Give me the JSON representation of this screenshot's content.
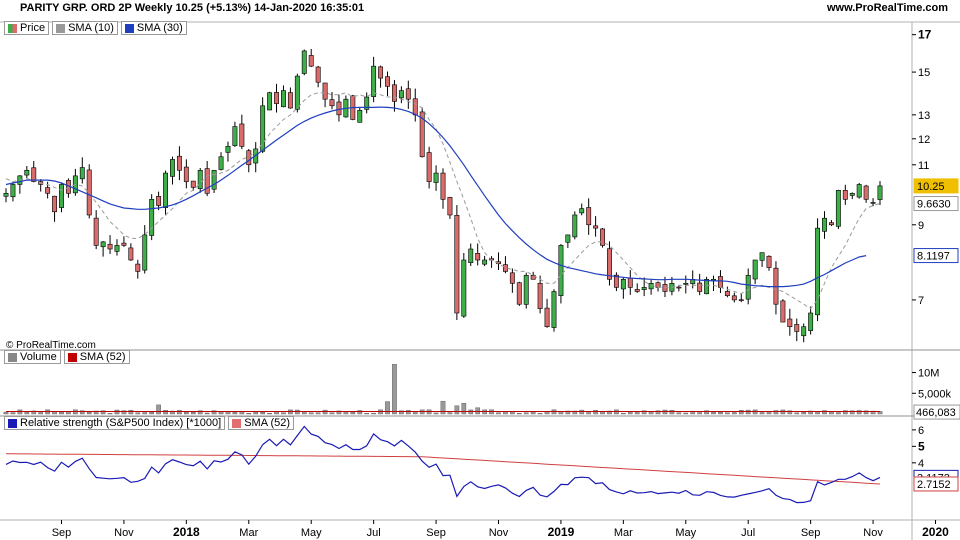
{
  "header": {
    "title": "PARITY GRP. ORD 2P Weekly 10.25 (+5.13%) 14-Jan-2020 16:35:01",
    "site": "www.ProRealTime.com",
    "copyright": "© ProRealTime.com"
  },
  "legend_price": [
    {
      "label": "Price",
      "color": "#3fae49"
    },
    {
      "label": "SMA (10)",
      "color": "#999999"
    },
    {
      "label": "SMA (30)",
      "color": "#1f3fbf"
    }
  ],
  "legend_volume": [
    {
      "label": "Volume",
      "color": "#888888"
    },
    {
      "label": "SMA (52)",
      "color": "#c00000"
    }
  ],
  "legend_rs": [
    {
      "label": "Relative strength (S&P500 Index) [*1000]",
      "color": "#1f1fb0"
    },
    {
      "label": "SMA (52)",
      "color": "#e07070"
    }
  ],
  "colors": {
    "up": "#3fae49",
    "down": "#d96b6b",
    "sma30": "#1f3fbf",
    "sma10": "#9a9a9a",
    "volume": "#999999",
    "volume_sma": "#c00000",
    "rs": "#1a1ab5",
    "rs_sma": "#d04040",
    "price_badge": "#f0c000"
  },
  "chart_data": [
    {
      "type": "candlestick",
      "title": "PARITY GRP. ORD 2P Weekly 10.25 (+5.13%) 14-Jan-2020 16:35:01",
      "yscale": "log",
      "ylim": [
        6.0,
        17.5
      ],
      "yticks": [
        {
          "value": 17,
          "label": "17",
          "bold": true
        },
        {
          "value": 15,
          "label": "15"
        },
        {
          "value": 13,
          "label": "13"
        },
        {
          "value": 12,
          "label": "12"
        },
        {
          "value": 11,
          "label": "11"
        },
        {
          "value": 9,
          "label": "9"
        },
        {
          "value": 7,
          "label": "7"
        }
      ],
      "badges": [
        {
          "value": 10.25,
          "label": "10.25",
          "style": "last"
        },
        {
          "value": 9.663,
          "label": "9.6630",
          "style": "sma10"
        },
        {
          "value": 8.1197,
          "label": "8.1197",
          "style": "sma30"
        }
      ],
      "closes": [
        10.0,
        10.3,
        10.6,
        10.8,
        10.4,
        10.3,
        10.0,
        9.4,
        10.3,
        10.0,
        10.6,
        10.9,
        9.3,
        8.4,
        8.5,
        8.3,
        8.4,
        8.4,
        8.0,
        7.7,
        8.7,
        9.8,
        9.6,
        10.7,
        11.2,
        10.8,
        10.4,
        10.2,
        10.8,
        10.0,
        10.8,
        11.3,
        11.7,
        12.5,
        11.7,
        11.0,
        11.6,
        13.4,
        14.0,
        13.5,
        14.1,
        13.3,
        14.8,
        16.1,
        15.3,
        14.5,
        13.7,
        13.4,
        13.0,
        13.7,
        12.8,
        13.2,
        13.8,
        15.3,
        14.7,
        14.3,
        13.6,
        14.1,
        13.7,
        13.0,
        11.3,
        10.4,
        10.7,
        9.8,
        9.3,
        6.7,
        8.0,
        8.3,
        8.0,
        8.0,
        8.0,
        7.9,
        7.7,
        7.4,
        6.9,
        7.6,
        7.5,
        6.8,
        6.4,
        7.2,
        8.4,
        8.7,
        9.3,
        9.5,
        9.0,
        8.9,
        8.4,
        7.5,
        7.3,
        7.5,
        7.3,
        7.2,
        7.3,
        7.4,
        7.3,
        7.2,
        7.4,
        7.3,
        7.4,
        7.5,
        7.2,
        7.5,
        7.5,
        7.3,
        7.1,
        7.0,
        7.0,
        7.6,
        8.0,
        8.2,
        7.8,
        6.9,
        6.5,
        6.4,
        6.3,
        6.4,
        6.7,
        8.9,
        9.2,
        9.0,
        10.1,
        9.8,
        10.0,
        10.3,
        9.8,
        9.7,
        10.25
      ],
      "sma10": [
        10.5,
        10.4,
        10.45,
        10.5,
        10.45,
        10.35,
        10.3,
        10.2,
        10.1,
        10.2,
        10.3,
        10.25,
        10.0,
        9.7,
        9.4,
        9.1,
        8.9,
        8.7,
        8.6,
        8.6,
        8.7,
        8.9,
        9.1,
        9.3,
        9.5,
        9.75,
        10.0,
        10.1,
        10.35,
        10.6,
        10.65,
        10.7,
        10.8,
        11.0,
        11.2,
        11.3,
        11.5,
        11.8,
        12.2,
        12.5,
        12.8,
        13.0,
        13.3,
        13.65,
        13.9,
        14.0,
        14.0,
        13.9,
        13.9,
        14.0,
        13.8,
        13.9,
        13.8,
        14.0,
        13.9,
        13.8,
        13.8,
        13.7,
        13.6,
        13.5,
        13.3,
        12.8,
        12.4,
        11.8,
        11.1,
        10.4,
        9.8,
        9.2,
        8.6,
        8.2,
        8.0,
        7.9,
        7.8,
        7.75,
        7.7,
        7.7,
        7.6,
        7.5,
        7.4,
        7.4,
        7.6,
        7.8,
        8.0,
        8.2,
        8.4,
        8.5,
        8.5,
        8.4,
        8.2,
        8.0,
        7.8,
        7.6,
        7.45,
        7.35,
        7.3,
        7.3,
        7.3,
        7.35,
        7.35,
        7.35,
        7.35,
        7.35,
        7.35,
        7.3,
        7.25,
        7.2,
        7.15,
        7.25,
        7.3,
        7.35,
        7.3,
        7.25,
        7.2,
        7.1,
        7.0,
        6.9,
        6.8,
        7.0,
        7.4,
        7.8,
        8.1,
        8.4,
        8.8,
        9.2,
        9.5,
        9.6,
        9.663
      ],
      "sma30": [
        10.3,
        10.35,
        10.4,
        10.45,
        10.45,
        10.45,
        10.45,
        10.42,
        10.35,
        10.25,
        10.15,
        10.05,
        9.95,
        9.85,
        9.75,
        9.65,
        9.58,
        9.52,
        9.5,
        9.48,
        9.48,
        9.5,
        9.52,
        9.56,
        9.62,
        9.7,
        9.8,
        9.92,
        10.05,
        10.18,
        10.3,
        10.45,
        10.62,
        10.8,
        10.98,
        11.16,
        11.35,
        11.55,
        11.75,
        11.95,
        12.15,
        12.35,
        12.55,
        12.72,
        12.86,
        12.98,
        13.08,
        13.17,
        13.24,
        13.29,
        13.32,
        13.33,
        13.33,
        13.33,
        13.34,
        13.33,
        13.3,
        13.24,
        13.15,
        13.02,
        12.85,
        12.62,
        12.35,
        12.05,
        11.72,
        11.36,
        11.0,
        10.62,
        10.26,
        9.92,
        9.6,
        9.3,
        9.04,
        8.82,
        8.62,
        8.44,
        8.28,
        8.14,
        8.02,
        7.93,
        7.86,
        7.8,
        7.76,
        7.72,
        7.68,
        7.64,
        7.61,
        7.59,
        7.57,
        7.55,
        7.53,
        7.52,
        7.51,
        7.5,
        7.49,
        7.49,
        7.5,
        7.5,
        7.5,
        7.49,
        7.48,
        7.47,
        7.46,
        7.46,
        7.45,
        7.42,
        7.38,
        7.36,
        7.34,
        7.33,
        7.32,
        7.32,
        7.32,
        7.33,
        7.35,
        7.38,
        7.45,
        7.54,
        7.62,
        7.72,
        7.82,
        7.92,
        8.0,
        8.08,
        8.1197
      ],
      "x_labels": [
        {
          "index": 8,
          "label": "Sep"
        },
        {
          "index": 17,
          "label": "Nov"
        },
        {
          "index": 26,
          "label": "2018",
          "bold": true
        },
        {
          "index": 35,
          "label": "Mar"
        },
        {
          "index": 44,
          "label": "May"
        },
        {
          "index": 53,
          "label": "Jul"
        },
        {
          "index": 62,
          "label": "Sep"
        },
        {
          "index": 71,
          "label": "Nov"
        },
        {
          "index": 80,
          "label": "2019",
          "bold": true
        },
        {
          "index": 89,
          "label": "Mar"
        },
        {
          "index": 98,
          "label": "May"
        },
        {
          "index": 107,
          "label": "Jul"
        },
        {
          "index": 116,
          "label": "Sep"
        },
        {
          "index": 125,
          "label": "Nov"
        },
        {
          "index": 134,
          "label": "2020",
          "bold": true
        }
      ]
    },
    {
      "type": "bar",
      "title": "Volume",
      "ylim": [
        0,
        14000000
      ],
      "yticks": [
        {
          "value": 10000000,
          "label": "10M"
        },
        {
          "value": 5000000,
          "label": "5,000k"
        }
      ],
      "badge": {
        "value": 466083,
        "label": "466,083"
      },
      "spikes": [
        {
          "index": 22,
          "value": 2200000
        },
        {
          "index": 55,
          "value": 3000000
        },
        {
          "index": 56,
          "value": 12000000
        },
        {
          "index": 63,
          "value": 3100000
        },
        {
          "index": 65,
          "value": 2000000
        },
        {
          "index": 66,
          "value": 2600000
        },
        {
          "index": 68,
          "value": 1500000
        }
      ],
      "sma52": 600000
    },
    {
      "type": "line",
      "title": "Relative strength (S&P500 Index) [*1000]",
      "ylim": [
        0.65,
        6.6
      ],
      "yticks": [
        {
          "value": 6,
          "label": "6"
        },
        {
          "value": 5,
          "label": "5",
          "bold": true
        },
        {
          "value": 4,
          "label": "4"
        }
      ],
      "badges": [
        {
          "value": 3.1173,
          "label": "3.1173",
          "style": "rs"
        },
        {
          "value": 2.7152,
          "label": "2.7152",
          "style": "rs_sma"
        }
      ],
      "rs_sma52": 4.55,
      "rs_sma52_end": 2.7152
    }
  ]
}
